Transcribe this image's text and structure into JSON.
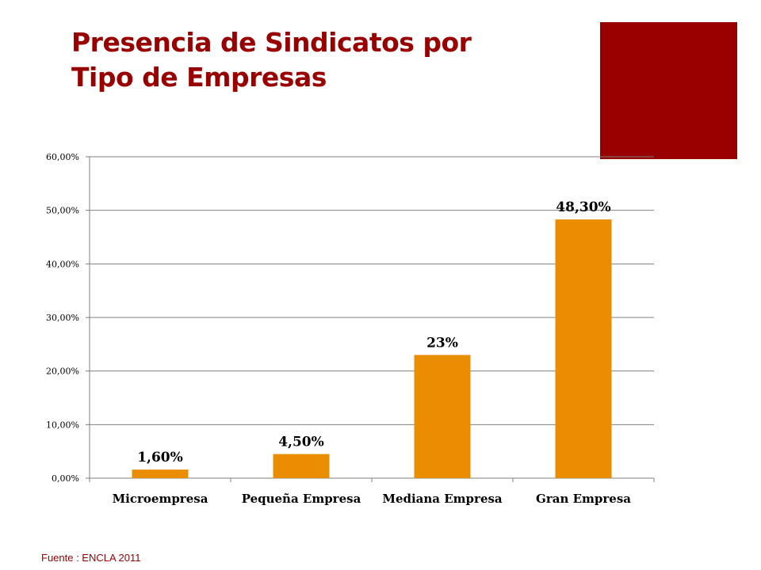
{
  "slide": {
    "title_line1": "Presencia de Sindicatos por",
    "title_line2": "Tipo de Empresas",
    "source": "Fuente : ENCLA 2011",
    "accent_color": "#990000"
  },
  "chart_data": {
    "type": "bar",
    "title": "",
    "xlabel": "",
    "ylabel": "",
    "categories": [
      "Microempresa",
      "Pequeña Empresa",
      "Mediana Empresa",
      "Gran Empresa"
    ],
    "values": [
      1.6,
      4.5,
      23,
      48.3
    ],
    "data_labels": [
      "1,60%",
      "4,50%",
      "23%",
      "48,30%"
    ],
    "ylim": [
      0,
      60
    ],
    "y_ticks": [
      0,
      10,
      20,
      30,
      40,
      50,
      60
    ],
    "y_tick_labels": [
      "0,00%",
      "10,00%",
      "20,00%",
      "30,00%",
      "40,00%",
      "50,00%",
      "60,00%"
    ],
    "grid": true,
    "bar_color": "#EA8D00"
  }
}
